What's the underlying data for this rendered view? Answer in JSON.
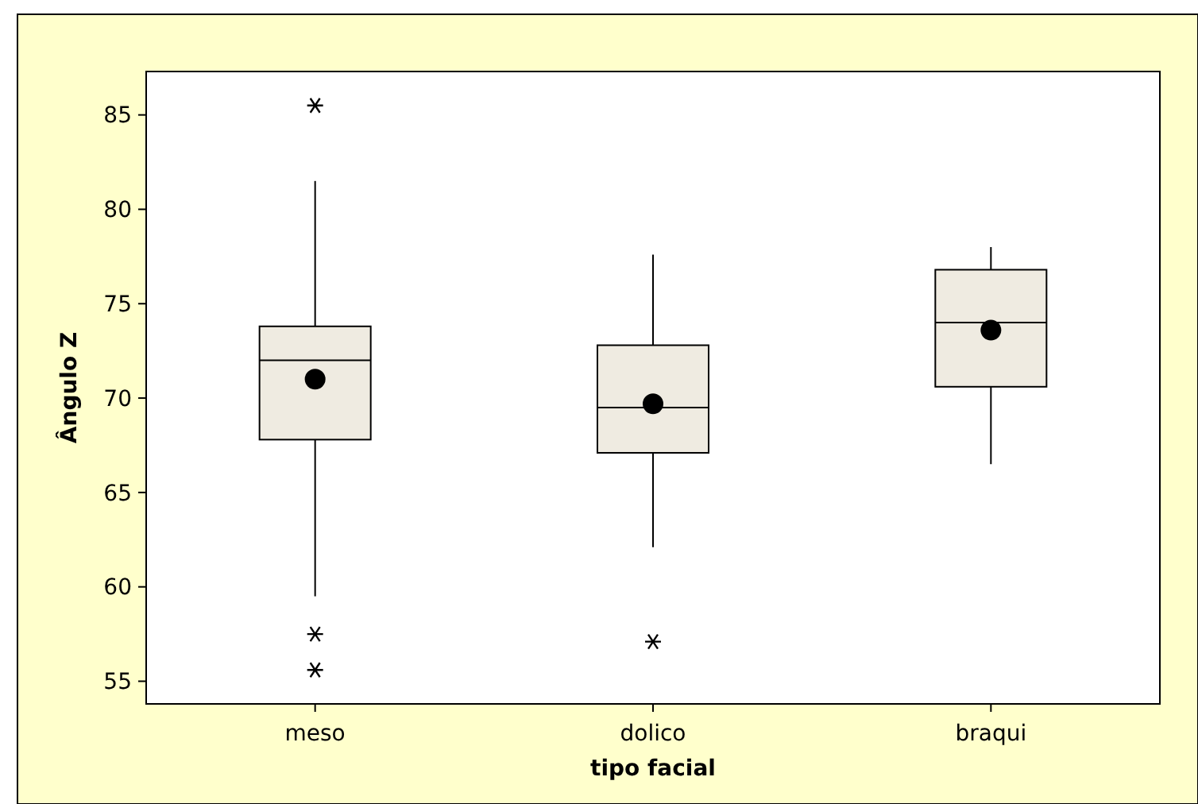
{
  "chart_data": {
    "type": "box",
    "xlabel": "tipo facial",
    "ylabel": "Ângulo Z",
    "categories": [
      "meso",
      "dolico",
      "braqui"
    ],
    "boxes": [
      {
        "low": 59.5,
        "q1": 67.8,
        "median": 72.0,
        "q3": 73.8,
        "high": 81.5,
        "mean": 71.0,
        "outliers": [
          85.5,
          57.5,
          55.6
        ]
      },
      {
        "low": 62.1,
        "q1": 67.1,
        "median": 69.5,
        "q3": 72.8,
        "high": 77.6,
        "mean": 69.7,
        "outliers": [
          57.1
        ]
      },
      {
        "low": 66.5,
        "q1": 70.6,
        "median": 74.0,
        "q3": 76.8,
        "high": 78.0,
        "mean": 73.6
      }
    ],
    "color": "#efebe1",
    "ylim": [
      53.8,
      87.3
    ],
    "yticks": [
      55,
      60,
      65,
      70,
      75,
      80,
      85
    ],
    "grid": false
  }
}
